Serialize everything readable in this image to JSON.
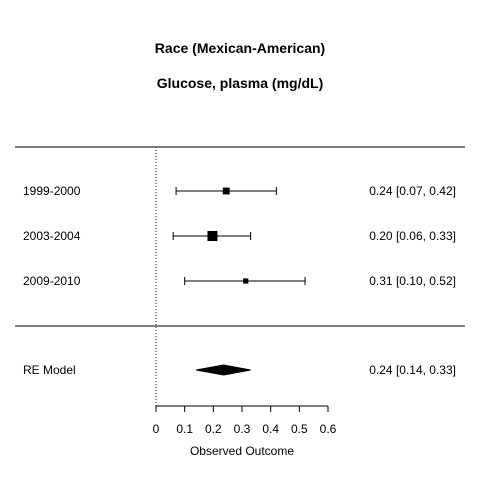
{
  "chart_data": {
    "type": "forest",
    "title": "Race (Mexican-American)",
    "subtitle": "Glucose, plasma (mg/dL)",
    "xlabel": "Observed Outcome",
    "xlim": [
      0,
      0.6
    ],
    "xticks": [
      "0",
      "0.1",
      "0.2",
      "0.3",
      "0.4",
      "0.5",
      "0.6"
    ],
    "reference_line": 0,
    "studies": [
      {
        "label": "1999-2000",
        "estimate": 0.245,
        "ci_low": 0.07,
        "ci_high": 0.42,
        "text": "0.24 [0.07, 0.42]",
        "weight": 0.3
      },
      {
        "label": "2003-2004",
        "estimate": 0.197,
        "ci_low": 0.06,
        "ci_high": 0.33,
        "text": "0.20 [0.06, 0.33]",
        "weight": 1.0
      },
      {
        "label": "2009-2010",
        "estimate": 0.313,
        "ci_low": 0.1,
        "ci_high": 0.52,
        "text": "0.31 [0.10, 0.52]",
        "weight": 0.1
      }
    ],
    "summary": {
      "label": "RE Model",
      "estimate": 0.236,
      "ci_low": 0.14,
      "ci_high": 0.33,
      "text": "0.24 [0.14, 0.33]"
    }
  }
}
